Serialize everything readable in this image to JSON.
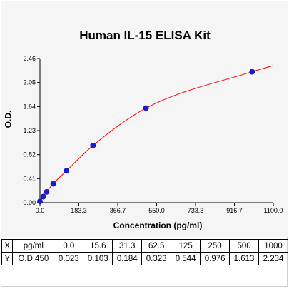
{
  "chart_data": {
    "type": "scatter",
    "title": "Human IL-15 ELISA Kit",
    "xlabel": "Concentration (pg/ml)",
    "ylabel": "O.D.",
    "xlim": [
      0,
      1100
    ],
    "ylim": [
      0,
      2.46
    ],
    "xticks": [
      "0.0",
      "183.3",
      "366.7",
      "550.0",
      "733.3",
      "916.7",
      "1100.0"
    ],
    "yticks": [
      "0.00",
      "0.41",
      "0.82",
      "1.23",
      "1.64",
      "2.05",
      "2.46"
    ],
    "series": [
      {
        "x": [
          0.0,
          15.6,
          31.3,
          62.5,
          125,
          250,
          500,
          1000
        ],
        "y": [
          0.023,
          0.103,
          0.184,
          0.323,
          0.544,
          0.976,
          1.613,
          2.234
        ]
      }
    ],
    "fit_curve": true,
    "grid": false
  },
  "table": {
    "rows": [
      [
        "X",
        "pg/ml",
        "0.0",
        "15.6",
        "31.3",
        "62.5",
        "125",
        "250",
        "500",
        "1000"
      ],
      [
        "Y",
        "O.D.450",
        "0.023",
        "0.103",
        "0.184",
        "0.323",
        "0.544",
        "0.976",
        "1.613",
        "2.234"
      ]
    ]
  },
  "colors": {
    "curve": "#ff0000",
    "points": "#1a1adf"
  }
}
